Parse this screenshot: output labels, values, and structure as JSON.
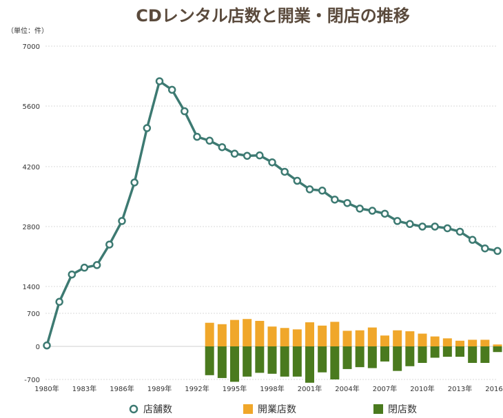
{
  "chart_data": {
    "type": "bar+line",
    "title": "CDレンタル店数と開業・閉店の推移",
    "unit_label": "（単位：件）",
    "ylim": [
      -700,
      7000
    ],
    "yticks": [
      -700,
      0,
      700,
      1400,
      2800,
      4200,
      5600,
      7000
    ],
    "years": [
      1980,
      1981,
      1982,
      1983,
      1984,
      1985,
      1986,
      1987,
      1988,
      1989,
      1990,
      1991,
      1992,
      1993,
      1994,
      1995,
      1996,
      1997,
      1998,
      1999,
      2000,
      2001,
      2002,
      2003,
      2004,
      2005,
      2006,
      2007,
      2008,
      2009,
      2010,
      2011,
      2012,
      2013,
      2014,
      2015,
      2016
    ],
    "xtick_labels": [
      "1980年",
      "1983年",
      "1986年",
      "1989年",
      "1992年",
      "1995年",
      "1998年",
      "2001年",
      "2004年",
      "2007年",
      "2010年",
      "2013年",
      "2016年"
    ],
    "xtick_years": [
      1980,
      1983,
      1986,
      1989,
      1992,
      1995,
      1998,
      2001,
      2004,
      2007,
      2010,
      2013,
      2016
    ],
    "series": [
      {
        "name": "店舗数",
        "type": "line",
        "color": "#3d7a72",
        "values": [
          20,
          1000,
          1680,
          1840,
          1900,
          2380,
          2930,
          3830,
          5090,
          6180,
          5980,
          5480,
          4890,
          4800,
          4650,
          4500,
          4450,
          4460,
          4300,
          4080,
          3870,
          3670,
          3640,
          3430,
          3350,
          3220,
          3170,
          3100,
          2930,
          2860,
          2800,
          2800,
          2760,
          2680,
          2490,
          2290,
          2230
        ]
      },
      {
        "name": "開業店数",
        "type": "bar",
        "color": "#f0a72a",
        "values": [
          null,
          null,
          null,
          null,
          null,
          null,
          null,
          null,
          null,
          null,
          null,
          null,
          null,
          500,
          470,
          560,
          580,
          540,
          420,
          390,
          360,
          510,
          440,
          520,
          330,
          340,
          400,
          230,
          340,
          320,
          270,
          210,
          170,
          120,
          140,
          140,
          40
        ]
      },
      {
        "name": "閉店数",
        "type": "bar",
        "color": "#4a7a1e",
        "values": [
          null,
          null,
          null,
          null,
          null,
          null,
          null,
          null,
          null,
          null,
          null,
          null,
          null,
          -610,
          -670,
          -750,
          -640,
          -560,
          -580,
          -640,
          -640,
          -770,
          -550,
          -700,
          -480,
          -440,
          -460,
          -320,
          -520,
          -420,
          -350,
          -240,
          -220,
          -220,
          -350,
          -350,
          -120
        ]
      }
    ],
    "legend": {
      "position": "bottom",
      "items": [
        "店舗数",
        "開業店数",
        "閉店数"
      ]
    },
    "grid": true
  }
}
